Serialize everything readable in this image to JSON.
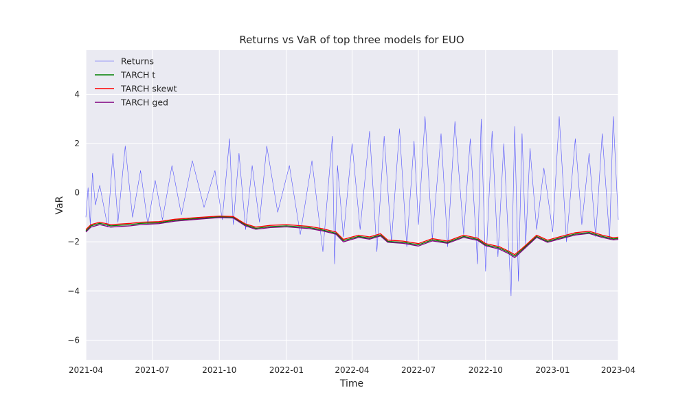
{
  "chart_data": {
    "type": "line",
    "title": "Returns vs VaR of top three models for EUO",
    "xlabel": "Time",
    "ylabel": "VaR",
    "xlim": [
      "2021-04-01",
      "2023-04-01"
    ],
    "ylim": [
      -6.8,
      5.8
    ],
    "xticks": [
      "2021-04",
      "2021-07",
      "2021-10",
      "2022-01",
      "2022-04",
      "2022-07",
      "2022-10",
      "2023-01",
      "2023-04"
    ],
    "yticks": [
      -6,
      -4,
      -2,
      0,
      2,
      4
    ],
    "ytick_labels": [
      "−6",
      "−4",
      "−2",
      "0",
      "2",
      "4"
    ],
    "grid": true,
    "background": "#eaeaf2",
    "legend_position": "top-left",
    "series": [
      {
        "name": "Returns",
        "color": "#0000ff",
        "x": [
          "2021-04-01",
          "2021-04-04",
          "2021-04-07",
          "2021-04-10",
          "2021-04-14",
          "2021-04-20",
          "2021-05-01",
          "2021-05-08",
          "2021-05-15",
          "2021-05-25",
          "2021-06-04",
          "2021-06-15",
          "2021-06-25",
          "2021-07-05",
          "2021-07-15",
          "2021-07-28",
          "2021-08-10",
          "2021-08-25",
          "2021-09-10",
          "2021-09-25",
          "2021-10-05",
          "2021-10-15",
          "2021-10-20",
          "2021-10-28",
          "2021-11-06",
          "2021-11-15",
          "2021-11-25",
          "2021-12-05",
          "2021-12-20",
          "2022-01-05",
          "2022-01-20",
          "2022-02-05",
          "2022-02-20",
          "2022-03-05",
          "2022-03-08",
          "2022-03-12",
          "2022-03-20",
          "2022-04-01",
          "2022-04-12",
          "2022-04-25",
          "2022-05-05",
          "2022-05-15",
          "2022-05-25",
          "2022-06-05",
          "2022-06-15",
          "2022-06-25",
          "2022-07-01",
          "2022-07-10",
          "2022-07-20",
          "2022-08-01",
          "2022-08-10",
          "2022-08-20",
          "2022-09-01",
          "2022-09-10",
          "2022-09-20",
          "2022-09-25",
          "2022-10-01",
          "2022-10-10",
          "2022-10-18",
          "2022-10-26",
          "2022-11-05",
          "2022-11-10",
          "2022-11-15",
          "2022-11-20",
          "2022-11-25",
          "2022-12-01",
          "2022-12-10",
          "2022-12-20",
          "2023-01-01",
          "2023-01-10",
          "2023-01-20",
          "2023-02-01",
          "2023-02-10",
          "2023-02-20",
          "2023-03-01",
          "2023-03-10",
          "2023-03-20",
          "2023-03-25",
          "2023-04-01"
        ],
        "y": [
          -1.0,
          0.2,
          -1.3,
          0.8,
          -0.5,
          0.3,
          -1.4,
          1.6,
          -1.2,
          1.9,
          -1.0,
          0.9,
          -1.3,
          0.5,
          -1.1,
          1.1,
          -0.9,
          1.3,
          -0.6,
          0.9,
          -1.1,
          2.2,
          -1.3,
          1.6,
          -1.5,
          1.1,
          -1.2,
          1.9,
          -0.8,
          1.1,
          -1.7,
          1.3,
          -2.4,
          2.3,
          -2.9,
          1.1,
          -1.8,
          2.0,
          -1.5,
          2.5,
          -2.4,
          2.3,
          -2.0,
          2.6,
          -2.2,
          2.1,
          -1.3,
          3.1,
          -1.9,
          2.4,
          -2.2,
          2.9,
          -1.7,
          2.2,
          -2.9,
          3.0,
          -3.2,
          2.5,
          -2.6,
          2.0,
          -4.2,
          2.7,
          -3.6,
          2.4,
          -2.1,
          1.8,
          -1.5,
          1.0,
          -1.6,
          3.1,
          -2.0,
          2.2,
          -1.3,
          1.6,
          -1.8,
          2.4,
          -1.9,
          3.1,
          -1.1
        ]
      },
      {
        "name": "TARCH t",
        "color": "#008000",
        "x": [
          "2021-04-01",
          "2021-04-08",
          "2021-04-20",
          "2021-05-05",
          "2021-06-01",
          "2021-06-15",
          "2021-07-10",
          "2021-08-01",
          "2021-09-01",
          "2021-10-01",
          "2021-10-20",
          "2021-11-05",
          "2021-11-20",
          "2021-12-10",
          "2022-01-01",
          "2022-02-01",
          "2022-02-20",
          "2022-03-10",
          "2022-03-20",
          "2022-04-10",
          "2022-04-25",
          "2022-05-10",
          "2022-05-20",
          "2022-06-10",
          "2022-07-01",
          "2022-07-20",
          "2022-08-10",
          "2022-09-01",
          "2022-09-20",
          "2022-10-01",
          "2022-10-20",
          "2022-11-01",
          "2022-11-10",
          "2022-11-20",
          "2022-12-10",
          "2022-12-25",
          "2023-01-10",
          "2023-02-01",
          "2023-02-20",
          "2023-03-10",
          "2023-03-25",
          "2023-04-01"
        ],
        "y": [
          -1.55,
          -1.35,
          -1.25,
          -1.35,
          -1.3,
          -1.25,
          -1.22,
          -1.12,
          -1.05,
          -0.98,
          -1.0,
          -1.3,
          -1.45,
          -1.38,
          -1.35,
          -1.42,
          -1.52,
          -1.65,
          -1.95,
          -1.78,
          -1.85,
          -1.72,
          -1.98,
          -2.02,
          -2.12,
          -1.92,
          -2.02,
          -1.78,
          -1.9,
          -2.12,
          -2.25,
          -2.42,
          -2.58,
          -2.32,
          -1.78,
          -1.98,
          -1.85,
          -1.68,
          -1.62,
          -1.78,
          -1.88,
          -1.86
        ]
      },
      {
        "name": "TARCH skewt",
        "color": "#ff0000",
        "x": [
          "2021-04-01",
          "2021-04-08",
          "2021-04-20",
          "2021-05-05",
          "2021-06-01",
          "2021-06-15",
          "2021-07-10",
          "2021-08-01",
          "2021-09-01",
          "2021-10-01",
          "2021-10-20",
          "2021-11-05",
          "2021-11-20",
          "2021-12-10",
          "2022-01-01",
          "2022-02-01",
          "2022-02-20",
          "2022-03-10",
          "2022-03-20",
          "2022-04-10",
          "2022-04-25",
          "2022-05-10",
          "2022-05-20",
          "2022-06-10",
          "2022-07-01",
          "2022-07-20",
          "2022-08-10",
          "2022-09-01",
          "2022-09-20",
          "2022-10-01",
          "2022-10-20",
          "2022-11-01",
          "2022-11-10",
          "2022-11-20",
          "2022-12-10",
          "2022-12-25",
          "2023-01-10",
          "2023-02-01",
          "2023-02-20",
          "2023-03-10",
          "2023-03-25",
          "2023-04-01"
        ],
        "y": [
          -1.5,
          -1.3,
          -1.2,
          -1.3,
          -1.25,
          -1.2,
          -1.18,
          -1.08,
          -1.01,
          -0.95,
          -0.97,
          -1.26,
          -1.4,
          -1.33,
          -1.3,
          -1.37,
          -1.47,
          -1.6,
          -1.9,
          -1.73,
          -1.8,
          -1.67,
          -1.93,
          -1.97,
          -2.07,
          -1.87,
          -1.97,
          -1.73,
          -1.85,
          -2.07,
          -2.2,
          -2.37,
          -2.52,
          -2.27,
          -1.73,
          -1.93,
          -1.8,
          -1.63,
          -1.57,
          -1.73,
          -1.83,
          -1.81
        ]
      },
      {
        "name": "TARCH ged",
        "color": "#800080",
        "x": [
          "2021-04-01",
          "2021-04-08",
          "2021-04-20",
          "2021-05-05",
          "2021-06-01",
          "2021-06-15",
          "2021-07-10",
          "2021-08-01",
          "2021-09-01",
          "2021-10-01",
          "2021-10-20",
          "2021-11-05",
          "2021-11-20",
          "2021-12-10",
          "2022-01-01",
          "2022-02-01",
          "2022-02-20",
          "2022-03-10",
          "2022-03-20",
          "2022-04-10",
          "2022-04-25",
          "2022-05-10",
          "2022-05-20",
          "2022-06-10",
          "2022-07-01",
          "2022-07-20",
          "2022-08-10",
          "2022-09-01",
          "2022-09-20",
          "2022-10-01",
          "2022-10-20",
          "2022-11-01",
          "2022-11-10",
          "2022-11-20",
          "2022-12-10",
          "2022-12-25",
          "2023-01-10",
          "2023-02-01",
          "2023-02-20",
          "2023-03-10",
          "2023-03-25",
          "2023-04-01"
        ],
        "y": [
          -1.6,
          -1.4,
          -1.3,
          -1.4,
          -1.35,
          -1.3,
          -1.26,
          -1.16,
          -1.08,
          -1.01,
          -1.03,
          -1.34,
          -1.49,
          -1.42,
          -1.39,
          -1.46,
          -1.56,
          -1.69,
          -2.0,
          -1.82,
          -1.89,
          -1.76,
          -2.02,
          -2.06,
          -2.17,
          -1.96,
          -2.06,
          -1.82,
          -1.94,
          -2.16,
          -2.3,
          -2.47,
          -2.64,
          -2.37,
          -1.82,
          -2.02,
          -1.89,
          -1.72,
          -1.66,
          -1.82,
          -1.92,
          -1.9
        ]
      }
    ]
  }
}
